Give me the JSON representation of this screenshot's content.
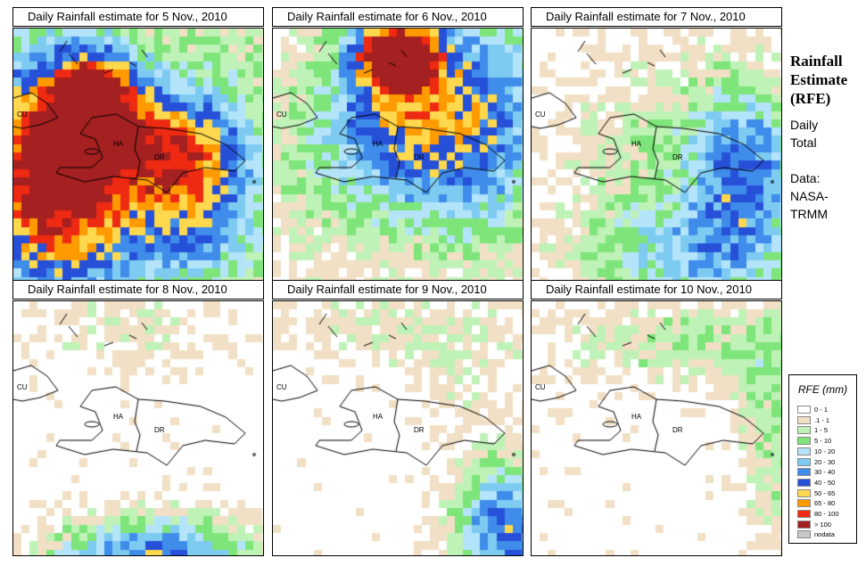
{
  "panels": [
    {
      "title": "Daily Rainfall estimate for  5 Nov., 2010",
      "intensity": "extreme"
    },
    {
      "title": "Daily Rainfall estimate for  6 Nov., 2010",
      "intensity": "high"
    },
    {
      "title": "Daily Rainfall estimate for  7 Nov., 2010",
      "intensity": "moderate"
    },
    {
      "title": "Daily Rainfall estimate for  8 Nov., 2010",
      "intensity": "south-bands"
    },
    {
      "title": "Daily Rainfall estimate for  9 Nov., 2010",
      "intensity": "southeast-bands"
    },
    {
      "title": "Daily Rainfall estimate for  10 Nov., 2010",
      "intensity": "light"
    }
  ],
  "map_labels": {
    "cu": "CU",
    "ha": "HA",
    "dr": "DR"
  },
  "sidebar": {
    "title": "Rainfall\nEstimate\n(RFE)",
    "subtitle": "Daily\nTotal",
    "source": "Data:\nNASA-\nTRMM"
  },
  "legend": {
    "title": "RFE (mm)",
    "items": [
      {
        "label": "0 - 1",
        "color": "#ffffff"
      },
      {
        "label": ".1 - 1",
        "color": "#f1e0c5"
      },
      {
        "label": "1 - 5",
        "color": "#bff2b6"
      },
      {
        "label": "5 - 10",
        "color": "#7ee57a"
      },
      {
        "label": "10 - 20",
        "color": "#b4e4fa"
      },
      {
        "label": "20 - 30",
        "color": "#7ecbf2"
      },
      {
        "label": "30 - 40",
        "color": "#3f8cea"
      },
      {
        "label": "40 - 50",
        "color": "#2650d8"
      },
      {
        "label": "50 - 65",
        "color": "#ffd84d"
      },
      {
        "label": "65 - 80",
        "color": "#ff9a00"
      },
      {
        "label": "80 - 100",
        "color": "#ee2a12"
      },
      {
        "label": "> 100",
        "color": "#a52020"
      },
      {
        "label": "nodata",
        "color": "#c8c8c8"
      }
    ]
  }
}
